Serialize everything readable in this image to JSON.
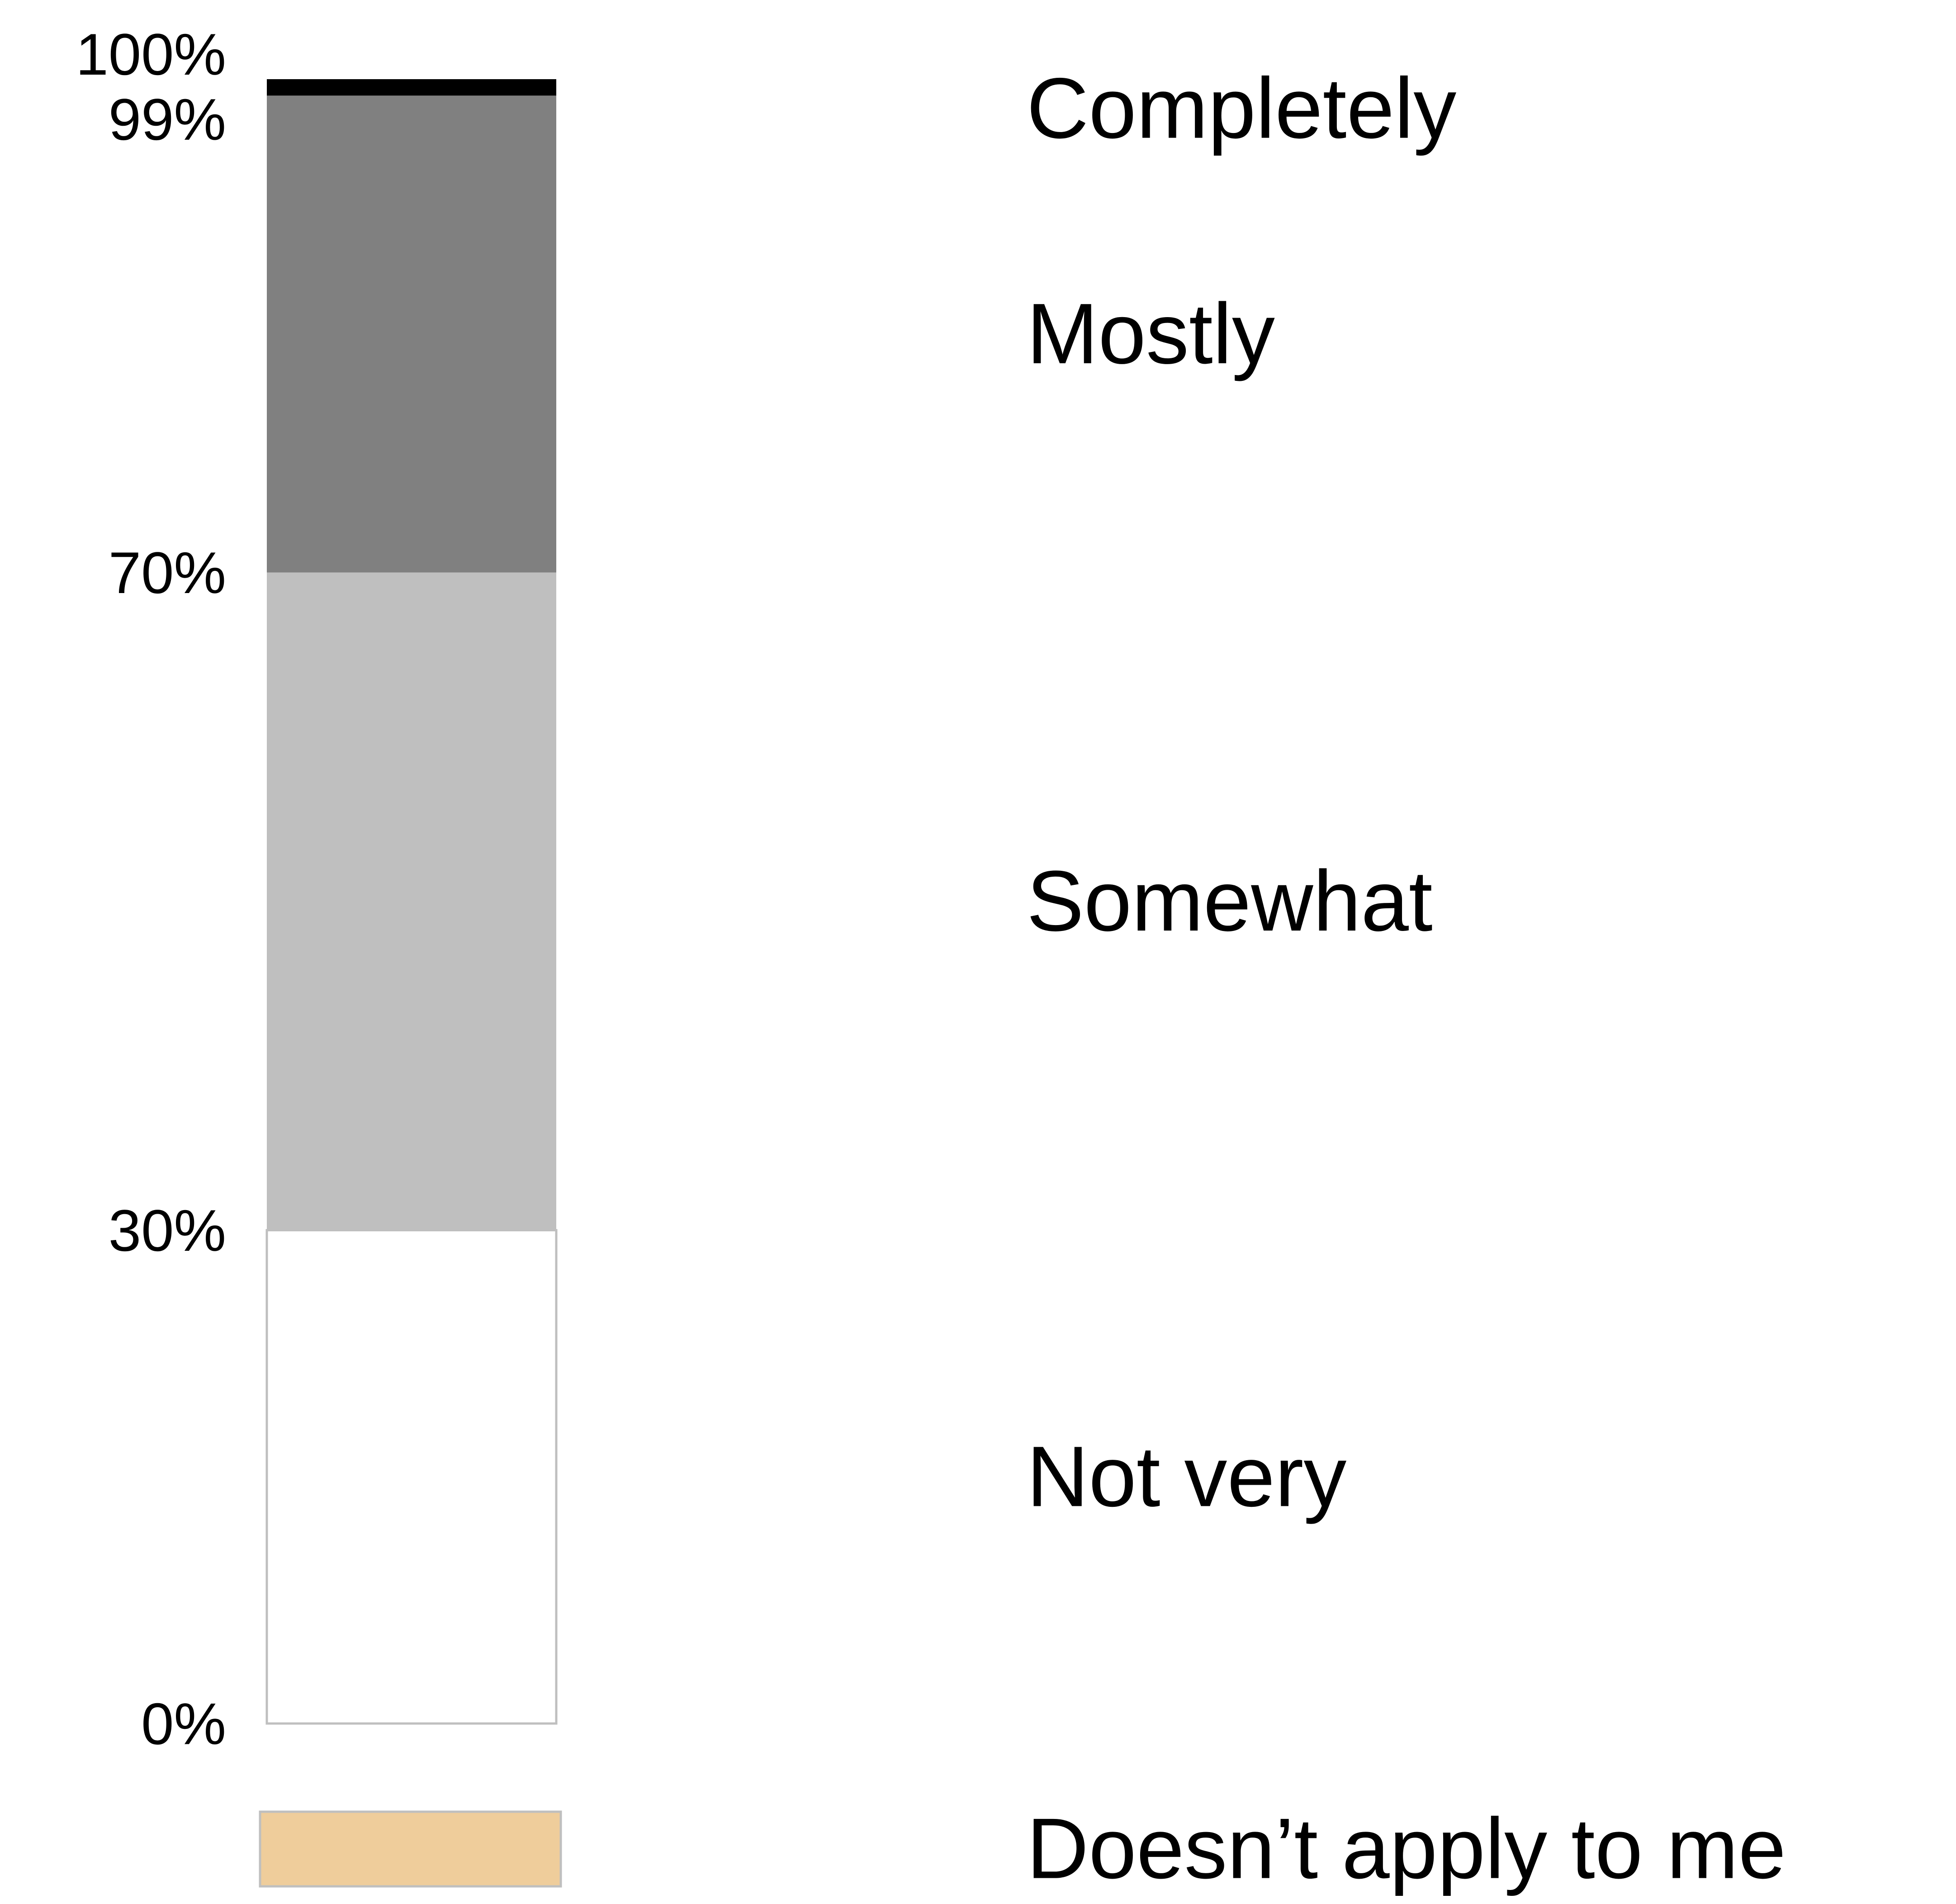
{
  "chart_data": {
    "type": "bar",
    "stacked": true,
    "orientation": "vertical",
    "ylim": [
      0,
      100
    ],
    "ytick_values": [
      0,
      30,
      70,
      99,
      100
    ],
    "ytick_labels": [
      "0%",
      "30%",
      "70%",
      "99%",
      "100%"
    ],
    "series": [
      {
        "name": "Not very",
        "start": 0,
        "end": 30,
        "value": 30,
        "color": "#ffffff",
        "border": "#bfbfbf"
      },
      {
        "name": "Somewhat",
        "start": 30,
        "end": 70,
        "value": 40,
        "color": "#bfbfbf"
      },
      {
        "name": "Mostly",
        "start": 70,
        "end": 99,
        "value": 29,
        "color": "#808080"
      },
      {
        "name": "Completely",
        "start": 99,
        "end": 100,
        "value": 1,
        "color": "#000000"
      }
    ],
    "separate_category": {
      "name": "Doesn’t apply to me",
      "color": "#efcd9b",
      "border": "#bfbfbf"
    },
    "legend": [
      "Completely",
      "Mostly",
      "Somewhat",
      "Not very",
      "Doesn’t apply to me"
    ],
    "legend_position": "right",
    "grid": false
  }
}
